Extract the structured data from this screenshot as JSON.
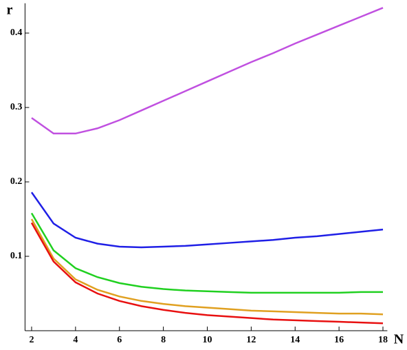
{
  "chart_data": {
    "type": "line",
    "x_label": "N",
    "y_label": "r",
    "x": [
      2,
      3,
      4,
      5,
      6,
      7,
      8,
      9,
      10,
      11,
      12,
      13,
      14,
      15,
      16,
      17,
      18
    ],
    "series": [
      {
        "color": "#c050e0",
        "values": [
          0.286,
          0.265,
          0.265,
          0.272,
          0.283,
          0.296,
          0.309,
          0.322,
          0.335,
          0.348,
          0.361,
          0.373,
          0.386,
          0.398,
          0.41,
          0.422,
          0.434
        ]
      },
      {
        "color": "#1f1fe6",
        "values": [
          0.186,
          0.144,
          0.125,
          0.117,
          0.113,
          0.112,
          0.113,
          0.114,
          0.116,
          0.118,
          0.12,
          0.122,
          0.125,
          0.127,
          0.13,
          0.133,
          0.136
        ]
      },
      {
        "color": "#20d020",
        "values": [
          0.158,
          0.108,
          0.084,
          0.072,
          0.064,
          0.059,
          0.056,
          0.054,
          0.053,
          0.052,
          0.051,
          0.051,
          0.051,
          0.051,
          0.051,
          0.052,
          0.052
        ]
      },
      {
        "color": "#e0a020",
        "values": [
          0.15,
          0.097,
          0.069,
          0.055,
          0.046,
          0.04,
          0.036,
          0.033,
          0.031,
          0.029,
          0.027,
          0.026,
          0.025,
          0.024,
          0.023,
          0.023,
          0.022
        ]
      },
      {
        "color": "#e81010",
        "values": [
          0.145,
          0.093,
          0.065,
          0.05,
          0.04,
          0.033,
          0.028,
          0.024,
          0.021,
          0.019,
          0.017,
          0.015,
          0.014,
          0.013,
          0.012,
          0.011,
          0.01
        ]
      }
    ],
    "xlim": [
      1.7,
      18.2
    ],
    "ylim": [
      0,
      0.44
    ],
    "xticks": [
      2,
      4,
      6,
      8,
      10,
      12,
      14,
      16,
      18
    ],
    "yticks": [
      0.1,
      0.2,
      0.3,
      0.4
    ]
  }
}
